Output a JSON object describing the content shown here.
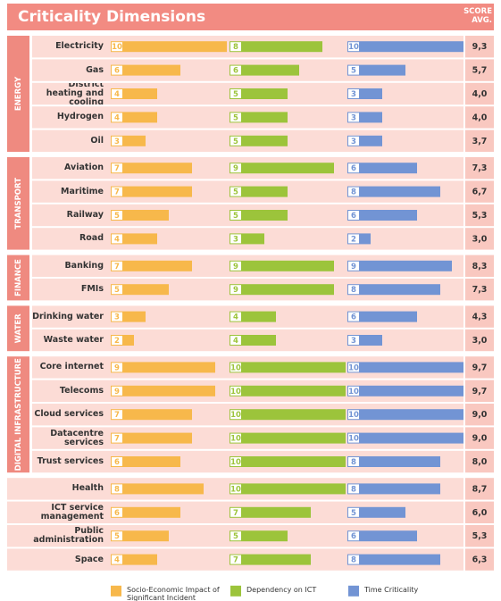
{
  "chart_data": {
    "type": "bar",
    "title": "Criticality Dimensions",
    "score_header": "SCORE AVG.",
    "xlim": [
      0,
      10
    ],
    "series": [
      {
        "name": "Socio-Economic Impact of Significant Incident",
        "color": "#f7b84b"
      },
      {
        "name": "Dependency on ICT",
        "color": "#9cc43b"
      },
      {
        "name": "Time Criticality",
        "color": "#7294d4"
      }
    ],
    "groups": [
      {
        "name": "ENERGY",
        "rows": [
          {
            "label": "Electricity",
            "values": [
              10,
              8,
              10
            ],
            "score": 9.3,
            "score_label": "9,3"
          },
          {
            "label": "Gas",
            "values": [
              6,
              6,
              5
            ],
            "score": 5.7,
            "score_label": "5,7"
          },
          {
            "label": "District heating and cooling",
            "values": [
              4,
              5,
              3
            ],
            "score": 4.0,
            "score_label": "4,0"
          },
          {
            "label": "Hydrogen",
            "values": [
              4,
              5,
              3
            ],
            "score": 4.0,
            "score_label": "4,0"
          },
          {
            "label": "Oil",
            "values": [
              3,
              5,
              3
            ],
            "score": 3.7,
            "score_label": "3,7"
          }
        ]
      },
      {
        "name": "TRANSPORT",
        "rows": [
          {
            "label": "Aviation",
            "values": [
              7,
              9,
              6
            ],
            "score": 7.3,
            "score_label": "7,3"
          },
          {
            "label": "Maritime",
            "values": [
              7,
              5,
              8
            ],
            "score": 6.7,
            "score_label": "6,7"
          },
          {
            "label": "Railway",
            "values": [
              5,
              5,
              6
            ],
            "score": 5.3,
            "score_label": "5,3"
          },
          {
            "label": "Road",
            "values": [
              4,
              3,
              2
            ],
            "score": 3.0,
            "score_label": "3,0"
          }
        ]
      },
      {
        "name": "FINANCE",
        "rows": [
          {
            "label": "Banking",
            "values": [
              7,
              9,
              9
            ],
            "score": 8.3,
            "score_label": "8,3"
          },
          {
            "label": "FMIs",
            "values": [
              5,
              9,
              8
            ],
            "score": 7.3,
            "score_label": "7,3"
          }
        ]
      },
      {
        "name": "WATER",
        "rows": [
          {
            "label": "Drinking water",
            "values": [
              3,
              4,
              6
            ],
            "score": 4.3,
            "score_label": "4,3"
          },
          {
            "label": "Waste water",
            "values": [
              2,
              4,
              3
            ],
            "score": 3.0,
            "score_label": "3,0"
          }
        ]
      },
      {
        "name": "DIGITAL INFRASTRUCTURE",
        "rows": [
          {
            "label": "Core internet",
            "values": [
              9,
              10,
              10
            ],
            "score": 9.7,
            "score_label": "9,7"
          },
          {
            "label": "Telecoms",
            "values": [
              9,
              10,
              10
            ],
            "score": 9.7,
            "score_label": "9,7"
          },
          {
            "label": "Cloud services",
            "values": [
              7,
              10,
              10
            ],
            "score": 9.0,
            "score_label": "9,0"
          },
          {
            "label": "Datacentre services",
            "values": [
              7,
              10,
              10
            ],
            "score": 9.0,
            "score_label": "9,0"
          },
          {
            "label": "Trust services",
            "values": [
              6,
              10,
              8
            ],
            "score": 8.0,
            "score_label": "8,0"
          }
        ]
      },
      {
        "name": null,
        "rows": [
          {
            "label": "Health",
            "values": [
              8,
              10,
              8
            ],
            "score": 8.7,
            "score_label": "8,7"
          },
          {
            "label": "ICT service management",
            "values": [
              6,
              7,
              5
            ],
            "score": 6.0,
            "score_label": "6,0"
          },
          {
            "label": "Public administration",
            "values": [
              5,
              5,
              6
            ],
            "score": 5.3,
            "score_label": "5,3"
          },
          {
            "label": "Space",
            "values": [
              4,
              7,
              8
            ],
            "score": 6.3,
            "score_label": "6,3"
          }
        ]
      }
    ]
  }
}
